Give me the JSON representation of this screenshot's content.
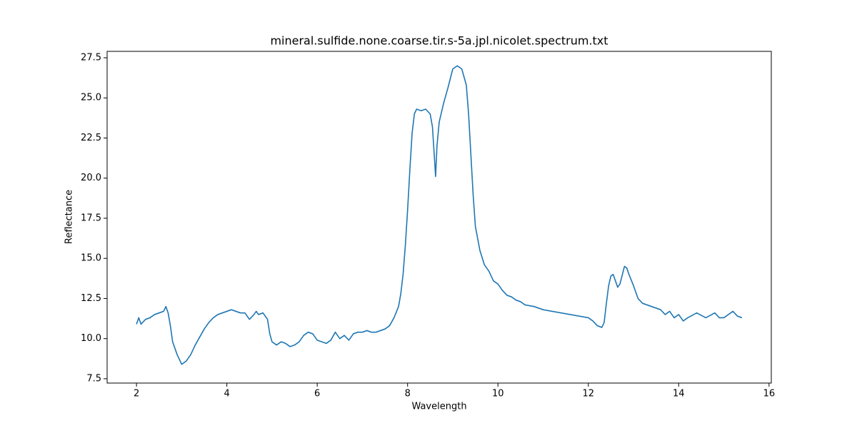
{
  "chart_data": {
    "type": "line",
    "title": "mineral.sulfide.none.coarse.tir.s-5a.jpl.nicolet.spectrum.txt",
    "xlabel": "Wavelength",
    "ylabel": "Reflectance",
    "x": [
      2.0,
      2.05,
      2.1,
      2.2,
      2.3,
      2.4,
      2.5,
      2.6,
      2.65,
      2.7,
      2.75,
      2.8,
      2.9,
      3.0,
      3.1,
      3.2,
      3.3,
      3.4,
      3.5,
      3.6,
      3.7,
      3.8,
      3.9,
      4.0,
      4.1,
      4.2,
      4.3,
      4.4,
      4.45,
      4.5,
      4.6,
      4.65,
      4.7,
      4.8,
      4.9,
      4.95,
      5.0,
      5.1,
      5.2,
      5.3,
      5.4,
      5.5,
      5.6,
      5.7,
      5.8,
      5.9,
      6.0,
      6.1,
      6.2,
      6.3,
      6.4,
      6.5,
      6.6,
      6.7,
      6.8,
      6.9,
      7.0,
      7.1,
      7.2,
      7.3,
      7.4,
      7.5,
      7.6,
      7.7,
      7.8,
      7.85,
      7.9,
      7.95,
      8.0,
      8.05,
      8.1,
      8.15,
      8.2,
      8.3,
      8.4,
      8.5,
      8.55,
      8.6,
      8.62,
      8.65,
      8.7,
      8.8,
      8.9,
      9.0,
      9.1,
      9.2,
      9.3,
      9.35,
      9.4,
      9.45,
      9.5,
      9.6,
      9.7,
      9.8,
      9.9,
      10.0,
      10.1,
      10.2,
      10.3,
      10.4,
      10.5,
      10.6,
      10.8,
      11.0,
      11.2,
      11.4,
      11.6,
      11.8,
      12.0,
      12.1,
      12.2,
      12.3,
      12.35,
      12.4,
      12.45,
      12.5,
      12.55,
      12.6,
      12.65,
      12.7,
      12.8,
      12.85,
      12.9,
      13.0,
      13.1,
      13.2,
      13.4,
      13.6,
      13.7,
      13.8,
      13.9,
      14.0,
      14.1,
      14.2,
      14.4,
      14.6,
      14.8,
      14.9,
      15.0,
      15.2,
      15.3,
      15.4
    ],
    "series": [
      {
        "color": "#1f77b4",
        "values": [
          10.9,
          11.3,
          10.9,
          11.2,
          11.3,
          11.5,
          11.6,
          11.7,
          12.0,
          11.6,
          10.8,
          9.8,
          9.0,
          8.4,
          8.6,
          9.0,
          9.6,
          10.1,
          10.6,
          11.0,
          11.3,
          11.5,
          11.6,
          11.7,
          11.8,
          11.7,
          11.6,
          11.6,
          11.4,
          11.2,
          11.5,
          11.7,
          11.5,
          11.6,
          11.2,
          10.3,
          9.8,
          9.6,
          9.8,
          9.7,
          9.5,
          9.6,
          9.8,
          10.2,
          10.4,
          10.3,
          9.9,
          9.8,
          9.7,
          9.9,
          10.4,
          10.0,
          10.2,
          9.9,
          10.3,
          10.4,
          10.4,
          10.5,
          10.4,
          10.4,
          10.5,
          10.6,
          10.8,
          11.3,
          12.0,
          12.8,
          14.0,
          15.8,
          18.0,
          20.5,
          22.8,
          24.0,
          24.3,
          24.2,
          24.3,
          24.0,
          23.2,
          21.0,
          20.1,
          22.0,
          23.5,
          24.7,
          25.7,
          26.8,
          27.0,
          26.8,
          25.8,
          24.0,
          21.5,
          19.0,
          17.0,
          15.5,
          14.6,
          14.2,
          13.6,
          13.4,
          13.0,
          12.7,
          12.6,
          12.4,
          12.3,
          12.1,
          12.0,
          11.8,
          11.7,
          11.6,
          11.5,
          11.4,
          11.3,
          11.1,
          10.8,
          10.7,
          11.0,
          12.2,
          13.3,
          13.9,
          14.0,
          13.6,
          13.2,
          13.4,
          14.5,
          14.4,
          14.0,
          13.3,
          12.5,
          12.2,
          12.0,
          11.8,
          11.5,
          11.7,
          11.3,
          11.5,
          11.1,
          11.3,
          11.6,
          11.3,
          11.6,
          11.3,
          11.3,
          11.7,
          11.4,
          11.3
        ]
      }
    ],
    "xlim": [
      1.35,
      16.05
    ],
    "xticks": [
      2,
      4,
      6,
      8,
      10,
      12,
      14,
      16
    ],
    "ylim": [
      7.23,
      27.9
    ],
    "yticks": [
      7.5,
      {
        "value": 10,
        "label": "10.0"
      },
      12.5,
      {
        "value": 15,
        "label": "15.0"
      },
      17.5,
      {
        "value": 20,
        "label": "20.0"
      },
      22.5,
      {
        "value": 25,
        "label": "25.0"
      },
      27.5
    ]
  }
}
